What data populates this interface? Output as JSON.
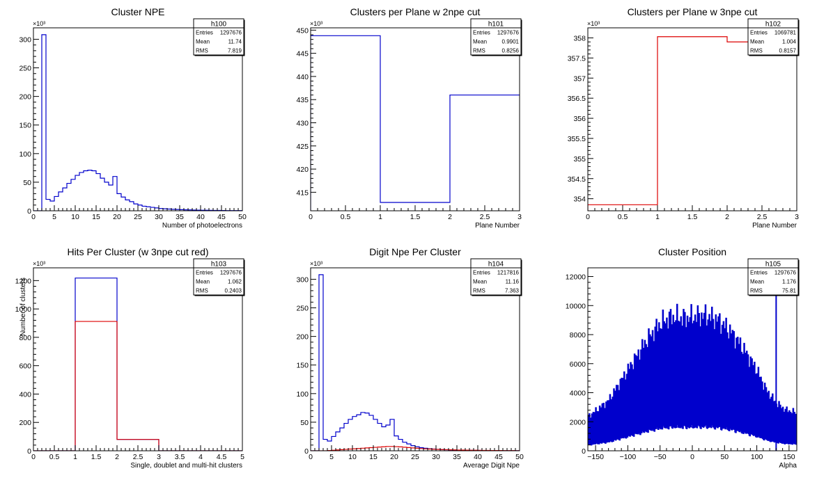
{
  "canvas": {
    "background": "#ffffff"
  },
  "colors": {
    "blue": "#0000cc",
    "red": "#dd0000",
    "axis": "#000000"
  },
  "charts": [
    {
      "id": "h100",
      "stats": {
        "name": "h100",
        "rows": [
          {
            "label": "Entries",
            "value": "1297676"
          },
          {
            "label": "Mean",
            "value": "11.74"
          },
          {
            "label": "RMS",
            "value": "7.819"
          }
        ]
      },
      "chart_data": {
        "type": "histogram",
        "title": "Cluster NPE",
        "xlabel": "Number of photoelectrons",
        "ylabel": "",
        "xlim": [
          0,
          50
        ],
        "ylim": [
          0,
          320000
        ],
        "y_exponent": "×10³",
        "xticks": [
          0,
          5,
          10,
          15,
          20,
          25,
          30,
          35,
          40,
          45,
          50
        ],
        "xtick_labels": [
          "0",
          "5",
          "10",
          "15",
          "20",
          "25",
          "30",
          "35",
          "40",
          "45",
          "50"
        ],
        "yticks": [
          0,
          50000,
          100000,
          150000,
          200000,
          250000,
          300000
        ],
        "ytick_labels": [
          "0",
          "50",
          "100",
          "150",
          "200",
          "250",
          "300"
        ],
        "series": [
          {
            "color": "#0000cc",
            "bin_width": 1,
            "x_start": 0,
            "values": [
              0,
              0,
              308000,
              20000,
              17000,
              25000,
              33000,
              40000,
              48000,
              55000,
              62000,
              67000,
              70000,
              71000,
              70000,
              65000,
              57000,
              50000,
              45000,
              60000,
              30000,
              24000,
              19000,
              16000,
              12000,
              10000,
              8000,
              7000,
              6000,
              5000,
              4000,
              3500,
              3000,
              2600,
              2300,
              2000,
              1700,
              1500,
              1300,
              1100,
              1000,
              900,
              800,
              700,
              600,
              500,
              400,
              400,
              300,
              300
            ]
          }
        ]
      }
    },
    {
      "id": "h101",
      "stats": {
        "name": "h101",
        "rows": [
          {
            "label": "Entries",
            "value": "1297676"
          },
          {
            "label": "Mean",
            "value": "0.9901"
          },
          {
            "label": "RMS",
            "value": "0.8256"
          }
        ]
      },
      "chart_data": {
        "type": "histogram",
        "title": "Clusters per Plane w 2npe cut",
        "xlabel": "Plane Number",
        "ylabel": "",
        "xlim": [
          0,
          3
        ],
        "ylim": [
          411000,
          450500
        ],
        "y_exponent": "×10³",
        "xticks": [
          0,
          0.5,
          1,
          1.5,
          2,
          2.5,
          3
        ],
        "xtick_labels": [
          "0",
          "0.5",
          "1",
          "1.5",
          "2",
          "2.5",
          "3"
        ],
        "yticks": [
          415000,
          420000,
          425000,
          430000,
          435000,
          440000,
          445000,
          450000
        ],
        "ytick_labels": [
          "415",
          "420",
          "425",
          "430",
          "435",
          "440",
          "445",
          "450"
        ],
        "series": [
          {
            "color": "#0000cc",
            "bin_width": 1,
            "x_start": 0,
            "values": [
              448800,
              412800,
              436000
            ]
          }
        ]
      }
    },
    {
      "id": "h102",
      "stats": {
        "name": "h102",
        "rows": [
          {
            "label": "Entries",
            "value": "1069781"
          },
          {
            "label": "Mean",
            "value": "1.004"
          },
          {
            "label": "RMS",
            "value": "0.8157"
          }
        ]
      },
      "chart_data": {
        "type": "histogram",
        "title": "Clusters per Plane w 3npe cut",
        "xlabel": "Plane Number",
        "ylabel": "",
        "xlim": [
          0,
          3
        ],
        "ylim": [
          353700,
          358250
        ],
        "y_exponent": "×10³",
        "xticks": [
          0,
          0.5,
          1,
          1.5,
          2,
          2.5,
          3
        ],
        "xtick_labels": [
          "0",
          "0.5",
          "1",
          "1.5",
          "2",
          "2.5",
          "3"
        ],
        "yticks": [
          354000,
          354500,
          355000,
          355500,
          356000,
          356500,
          357000,
          357500,
          358000
        ],
        "ytick_labels": [
          "354",
          "354.5",
          "355",
          "355.5",
          "356",
          "356.5",
          "357",
          "357.5",
          "358"
        ],
        "series": [
          {
            "color": "#dd0000",
            "bin_width": 1,
            "x_start": 0,
            "values": [
              353850,
              358030,
              357900
            ]
          }
        ]
      }
    },
    {
      "id": "h103",
      "stats": {
        "name": "h103",
        "rows": [
          {
            "label": "Entries",
            "value": "1297676"
          },
          {
            "label": "Mean",
            "value": "1.062"
          },
          {
            "label": "RMS",
            "value": "0.2403"
          }
        ]
      },
      "chart_data": {
        "type": "histogram",
        "title": "Hits Per Cluster (w 3npe cut red)",
        "xlabel": "Single, doublet and multi-hit clusters",
        "ylabel": "Number of clusters",
        "xlim": [
          0,
          5
        ],
        "ylim": [
          0,
          1290000
        ],
        "y_exponent": "×10³",
        "xticks": [
          0,
          0.5,
          1,
          1.5,
          2,
          2.5,
          3,
          3.5,
          4,
          4.5,
          5
        ],
        "xtick_labels": [
          "0",
          "0.5",
          "1",
          "1.5",
          "2",
          "2.5",
          "3",
          "3.5",
          "4",
          "4.5",
          "5"
        ],
        "yticks": [
          0,
          200000,
          400000,
          600000,
          800000,
          1000000,
          1200000
        ],
        "ytick_labels": [
          "0",
          "200",
          "400",
          "600",
          "800",
          "1000",
          "1200"
        ],
        "series": [
          {
            "color": "#0000cc",
            "bin_width": 1,
            "x_start": 0,
            "values": [
              0,
              1218000,
              80000,
              0,
              0
            ]
          },
          {
            "color": "#dd0000",
            "bin_width": 1,
            "x_start": 0,
            "values": [
              0,
              912000,
              80000,
              0,
              0
            ]
          }
        ]
      }
    },
    {
      "id": "h104",
      "stats": {
        "name": "h104",
        "rows": [
          {
            "label": "Entries",
            "value": "1217816"
          },
          {
            "label": "Mean",
            "value": "11.16"
          },
          {
            "label": "RMS",
            "value": "7.363"
          }
        ]
      },
      "chart_data": {
        "type": "histogram",
        "title": "Digit Npe Per Cluster",
        "xlabel": "Average Digit Npe",
        "ylabel": "",
        "xlim": [
          0,
          50
        ],
        "ylim": [
          0,
          320000
        ],
        "y_exponent": "×10³",
        "xticks": [
          0,
          5,
          10,
          15,
          20,
          25,
          30,
          35,
          40,
          45,
          50
        ],
        "xtick_labels": [
          "0",
          "5",
          "10",
          "15",
          "20",
          "25",
          "30",
          "35",
          "40",
          "45",
          "50"
        ],
        "yticks": [
          0,
          50000,
          100000,
          150000,
          200000,
          250000,
          300000
        ],
        "ytick_labels": [
          "0",
          "50",
          "100",
          "150",
          "200",
          "250",
          "300"
        ],
        "series": [
          {
            "color": "#0000cc",
            "bin_width": 1,
            "x_start": 0,
            "values": [
              0,
              0,
              308000,
              20000,
              17000,
              25000,
              33000,
              40000,
              48000,
              55000,
              60000,
              63000,
              67000,
              66000,
              62000,
              55000,
              48000,
              42000,
              45000,
              55000,
              26000,
              20000,
              15000,
              12000,
              9000,
              7000,
              5500,
              4500,
              3500,
              3000,
              2500,
              2000,
              1800,
              1500,
              1300,
              1100,
              1000,
              900,
              800,
              700,
              600,
              500,
              450,
              400,
              350,
              300,
              250,
              200,
              200,
              150
            ]
          },
          {
            "color": "#dd0000",
            "bin_width": 1,
            "x_start": 0,
            "values": [
              0,
              0,
              0,
              0,
              500,
              1000,
              1500,
              2000,
              2500,
              3000,
              3500,
              4000,
              4500,
              5000,
              5500,
              6000,
              6500,
              7000,
              7500,
              7500,
              7200,
              6800,
              6200,
              5600,
              5000,
              4400,
              3900,
              3400,
              3000,
              2700,
              2400,
              2100,
              1900,
              1700,
              1500,
              1300,
              1200,
              1100,
              1000,
              900,
              800,
              700,
              600,
              550,
              500,
              450,
              400,
              350,
              300,
              250
            ]
          }
        ]
      }
    },
    {
      "id": "h105",
      "stats": {
        "name": "h105",
        "rows": [
          {
            "label": "Entries",
            "value": "1297676"
          },
          {
            "label": "Mean",
            "value": "1.176"
          },
          {
            "label": "RMS",
            "value": "75.81"
          }
        ]
      },
      "chart_data": {
        "type": "histogram",
        "title": "Cluster Position",
        "xlabel": "Alpha",
        "ylabel": "",
        "xlim": [
          -162,
          162
        ],
        "ylim": [
          0,
          12600
        ],
        "xticks": [
          -150,
          -100,
          -50,
          0,
          50,
          100,
          150
        ],
        "xtick_labels": [
          "−150",
          "−100",
          "−50",
          "0",
          "50",
          "100",
          "150"
        ],
        "yticks": [
          0,
          2000,
          4000,
          6000,
          8000,
          10000,
          12000
        ],
        "ytick_labels": [
          "0",
          "2000",
          "4000",
          "6000",
          "8000",
          "10000",
          "12000"
        ],
        "series": [
          {
            "color": "#0000cc",
            "style": "comb",
            "bin_width": 2,
            "x_start": -162,
            "envelope": [
              [
                -162,
                2300
              ],
              [
                -150,
                2700
              ],
              [
                -130,
                3400
              ],
              [
                -110,
                4800
              ],
              [
                -90,
                6200
              ],
              [
                -70,
                7600
              ],
              [
                -50,
                8700
              ],
              [
                -40,
                9000
              ],
              [
                -30,
                9200
              ],
              [
                -10,
                9100
              ],
              [
                0,
                9200
              ],
              [
                20,
                9300
              ],
              [
                40,
                9000
              ],
              [
                60,
                8200
              ],
              [
                80,
                7000
              ],
              [
                100,
                5600
              ],
              [
                115,
                4200
              ],
              [
                130,
                3300
              ],
              [
                145,
                2800
              ],
              [
                162,
                2600
              ]
            ],
            "dip_fraction": 0.18,
            "spikes": [
              [
                130,
                11800
              ]
            ]
          }
        ]
      }
    }
  ]
}
